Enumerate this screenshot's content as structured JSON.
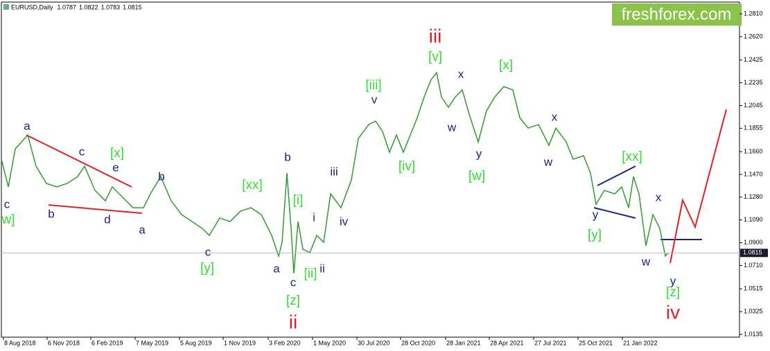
{
  "chart_data": {
    "type": "line",
    "symbol": "EURUSD,Daily",
    "ohlc": [
      1.0787,
      1.0822,
      1.0783,
      1.0815
    ],
    "watermark": "freshforex.com",
    "color": "#2f9a2f",
    "x": [
      0,
      10,
      20,
      38,
      50,
      65,
      80,
      95,
      110,
      120,
      135,
      150,
      160,
      175,
      190,
      205,
      215,
      230,
      245,
      260,
      275,
      290,
      300,
      315,
      330,
      345,
      360,
      375,
      390,
      400,
      405,
      412,
      418,
      422,
      428,
      435,
      445,
      455,
      465,
      475,
      490,
      505,
      515,
      530,
      540,
      550,
      560,
      570,
      580,
      590,
      600,
      610,
      620,
      628,
      635,
      645,
      655,
      665,
      675,
      688,
      700,
      712,
      725,
      738,
      748,
      760,
      775,
      790,
      800,
      815,
      825,
      840,
      850,
      858,
      870,
      885,
      895,
      905,
      912,
      920,
      930,
      940,
      950,
      958,
      962
    ],
    "values": [
      1.1597,
      1.1366,
      1.1683,
      1.1799,
      1.1539,
      1.1395,
      1.1366,
      1.1395,
      1.1452,
      1.1539,
      1.1337,
      1.125,
      1.1366,
      1.1279,
      1.1192,
      1.1192,
      1.1308,
      1.1452,
      1.125,
      1.1135,
      1.1077,
      1.1019,
      1.0961,
      1.1106,
      1.1077,
      1.1164,
      1.1192,
      1.1135,
      1.0961,
      1.0788,
      1.0904,
      1.1481,
      1.1019,
      1.0644,
      1.1077,
      1.0846,
      1.0817,
      1.0961,
      1.0904,
      1.1308,
      1.1192,
      1.1424,
      1.177,
      1.1886,
      1.1915,
      1.1828,
      1.1655,
      1.1799,
      1.1655,
      1.1799,
      1.1943,
      1.2117,
      1.2261,
      1.2319,
      1.2117,
      1.203,
      1.2117,
      1.2175,
      1.1972,
      1.1741,
      1.2001,
      1.2117,
      1.2203,
      1.2175,
      1.1943,
      1.1857,
      1.1886,
      1.1712,
      1.1857,
      1.1741,
      1.1597,
      1.1626,
      1.1481,
      1.1221,
      1.1337,
      1.1308,
      1.1366,
      1.1192,
      1.1452,
      1.1308,
      1.0875,
      1.1135,
      1.1019,
      1.0788,
      1.0815
    ],
    "last_price": 1.0815,
    "xlim": [
      0,
      1065
    ],
    "ylim": [
      1.0112,
      1.2897
    ],
    "yticks": [
      {
        "value": 1.281,
        "label": "1.2810"
      },
      {
        "value": 1.262,
        "label": "1.2620"
      },
      {
        "value": 1.2425,
        "label": "1.2425"
      },
      {
        "value": 1.2235,
        "label": "1.2235"
      },
      {
        "value": 1.2045,
        "label": "1.2045"
      },
      {
        "value": 1.1855,
        "label": "1.1855"
      },
      {
        "value": 1.166,
        "label": "1.1660"
      },
      {
        "value": 1.147,
        "label": "1.1470"
      },
      {
        "value": 1.128,
        "label": "1.1280"
      },
      {
        "value": 1.109,
        "label": "1.1090"
      },
      {
        "value": 1.09,
        "label": "1.0900"
      },
      {
        "value": 1.071,
        "label": "1.0710"
      },
      {
        "value": 1.0515,
        "label": "1.0515"
      },
      {
        "value": 1.0325,
        "label": "1.0325"
      },
      {
        "value": 1.0135,
        "label": "1.0135"
      }
    ],
    "xticks": [
      {
        "value": 3,
        "label": "8 Aug 2018"
      },
      {
        "value": 66,
        "label": "6 Nov 2018"
      },
      {
        "value": 129,
        "label": "6 Feb 2019"
      },
      {
        "value": 193,
        "label": "7 May 2019"
      },
      {
        "value": 257,
        "label": "5 Aug 2019"
      },
      {
        "value": 320,
        "label": "1 Nov 2019"
      },
      {
        "value": 385,
        "label": "3 Feb 2020"
      },
      {
        "value": 449,
        "label": "1 May 2020"
      },
      {
        "value": 513,
        "label": "30 Jul 2020"
      },
      {
        "value": 576,
        "label": "28 Oct 2020"
      },
      {
        "value": 641,
        "label": "28 Jan 2021"
      },
      {
        "value": 704,
        "label": "28 Apr 2021"
      },
      {
        "value": 768,
        "label": "27 Jul 2021"
      },
      {
        "value": 832,
        "label": "25 Oct 2021"
      },
      {
        "value": 896,
        "label": "21 Jan 2022"
      }
    ],
    "annotations": [
      {
        "text": "c",
        "x": 8,
        "y": 1.1216,
        "color": "#1a237e"
      },
      {
        "text": "w]",
        "x": 10,
        "y": 1.1088,
        "color": "#33dd33"
      },
      {
        "text": "a",
        "x": 37,
        "y": 1.1868,
        "color": "#1a237e"
      },
      {
        "text": "b",
        "x": 72,
        "y": 1.1135,
        "color": "#1a237e"
      },
      {
        "text": "c",
        "x": 116,
        "y": 1.1655,
        "color": "#1a237e"
      },
      {
        "text": "[x]",
        "x": 167,
        "y": 1.1643,
        "color": "#33dd33"
      },
      {
        "text": "e",
        "x": 165,
        "y": 1.1522,
        "color": "#1a237e"
      },
      {
        "text": "d",
        "x": 153,
        "y": 1.1088,
        "color": "#1a237e"
      },
      {
        "text": "a",
        "x": 203,
        "y": 1.1002,
        "color": "#1a237e"
      },
      {
        "text": "b",
        "x": 231,
        "y": 1.1447,
        "color": "#1a237e"
      },
      {
        "text": "[xx]",
        "x": 362,
        "y": 1.1377,
        "color": "#33dd33"
      },
      {
        "text": "c",
        "x": 298,
        "y": 1.0817,
        "color": "#1a237e"
      },
      {
        "text": "[y]",
        "x": 297,
        "y": 1.0684,
        "color": "#33dd33"
      },
      {
        "text": "b",
        "x": 413,
        "y": 1.1608,
        "color": "#1a237e"
      },
      {
        "text": "[i]",
        "x": 428,
        "y": 1.125,
        "color": "#33dd33"
      },
      {
        "text": "a",
        "x": 397,
        "y": 1.0678,
        "color": "#1a237e"
      },
      {
        "text": "c",
        "x": 421,
        "y": 1.0563,
        "color": "#1a237e"
      },
      {
        "text": "[z]",
        "x": 421,
        "y": 1.0413,
        "color": "#33dd33"
      },
      {
        "text": "ii",
        "x": 421,
        "y": 1.0228,
        "color": "#e02020"
      },
      {
        "text": "[ii]",
        "x": 446,
        "y": 1.0638,
        "color": "#33dd33"
      },
      {
        "text": "ii",
        "x": 463,
        "y": 1.0678,
        "color": "#1a237e"
      },
      {
        "text": "i",
        "x": 451,
        "y": 1.1106,
        "color": "#1a237e"
      },
      {
        "text": "iv",
        "x": 494,
        "y": 1.1071,
        "color": "#1a237e"
      },
      {
        "text": "iii",
        "x": 480,
        "y": 1.1487,
        "color": "#1a237e"
      },
      {
        "text": "[iii]",
        "x": 537,
        "y": 1.2209,
        "color": "#33dd33"
      },
      {
        "text": "v",
        "x": 538,
        "y": 1.2088,
        "color": "#1a237e"
      },
      {
        "text": "iii",
        "x": 626,
        "y": 1.2614,
        "color": "#e02020"
      },
      {
        "text": "[v]",
        "x": 626,
        "y": 1.2446,
        "color": "#33dd33"
      },
      {
        "text": "x",
        "x": 663,
        "y": 1.2302,
        "color": "#1a237e"
      },
      {
        "text": "w",
        "x": 650,
        "y": 1.1857,
        "color": "#1a237e"
      },
      {
        "text": "y",
        "x": 689,
        "y": 1.1637,
        "color": "#1a237e"
      },
      {
        "text": "[w]",
        "x": 686,
        "y": 1.1452,
        "color": "#33dd33"
      },
      {
        "text": "[iv]",
        "x": 585,
        "y": 1.1533,
        "color": "#33dd33"
      },
      {
        "text": "[x]",
        "x": 728,
        "y": 1.2377,
        "color": "#33dd33"
      },
      {
        "text": "x",
        "x": 798,
        "y": 1.1943,
        "color": "#1a237e"
      },
      {
        "text": "w",
        "x": 789,
        "y": 1.1568,
        "color": "#1a237e"
      },
      {
        "text": "[xx]",
        "x": 910,
        "y": 1.1614,
        "color": "#33dd33"
      },
      {
        "text": "y",
        "x": 857,
        "y": 1.1129,
        "color": "#1a237e"
      },
      {
        "text": "[y]",
        "x": 856,
        "y": 1.0961,
        "color": "#33dd33"
      },
      {
        "text": "w",
        "x": 930,
        "y": 1.0736,
        "color": "#1a237e"
      },
      {
        "text": "x",
        "x": 948,
        "y": 1.1273,
        "color": "#1a237e"
      },
      {
        "text": "y",
        "x": 969,
        "y": 1.0574,
        "color": "#1a237e"
      },
      {
        "text": "[z]",
        "x": 969,
        "y": 1.0482,
        "color": "#33dd33"
      },
      {
        "text": "iv",
        "x": 969,
        "y": 1.0309,
        "color": "#e02020"
      }
    ]
  }
}
